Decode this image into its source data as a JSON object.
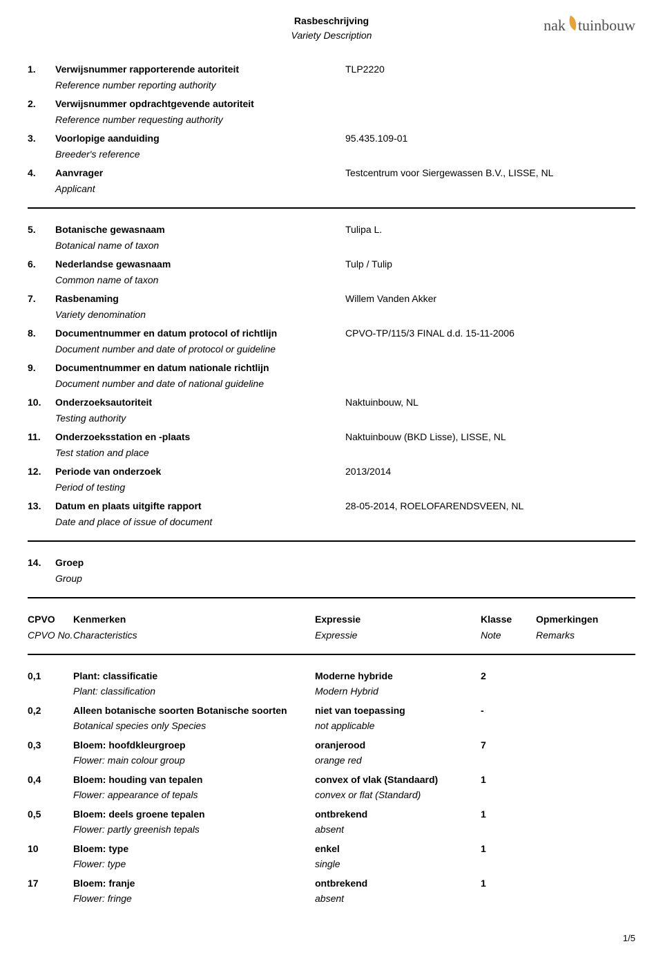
{
  "header": {
    "title_nl": "Rasbeschrijving",
    "title_en": "Variety Description",
    "logo_left": "nak",
    "logo_right": "tuinbouw"
  },
  "items": [
    {
      "num": "1.",
      "label_nl": "Verwijsnummer rapporterende autoriteit",
      "label_en": "Reference number reporting authority",
      "value": "TLP2220"
    },
    {
      "num": "2.",
      "label_nl": "Verwijsnummer opdrachtgevende autoriteit",
      "label_en": "Reference number requesting authority",
      "value": ""
    },
    {
      "num": "3.",
      "label_nl": "Voorlopige aanduiding",
      "label_en": "Breeder's reference",
      "value": "95.435.109-01"
    },
    {
      "num": "4.",
      "label_nl": "Aanvrager",
      "label_en": "Applicant",
      "value": "Testcentrum voor Siergewassen B.V., LISSE, NL"
    }
  ],
  "items2": [
    {
      "num": "5.",
      "label_nl": "Botanische gewasnaam",
      "label_en": "Botanical name of taxon",
      "value": "Tulipa L."
    },
    {
      "num": "6.",
      "label_nl": "Nederlandse gewasnaam",
      "label_en": "Common name of taxon",
      "value": "Tulp / Tulip"
    },
    {
      "num": "7.",
      "label_nl": "Rasbenaming",
      "label_en": "Variety denomination",
      "value": "Willem Vanden Akker"
    },
    {
      "num": "8.",
      "label_nl": "Documentnummer en datum protocol of richtlijn",
      "label_en": "Document number and date of protocol or guideline",
      "value": "CPVO-TP/115/3 FINAL d.d. 15-11-2006"
    },
    {
      "num": "9.",
      "label_nl": "Documentnummer en datum nationale richtlijn",
      "label_en": "Document number and date of national guideline",
      "value": ""
    },
    {
      "num": "10.",
      "label_nl": "Onderzoeksautoriteit",
      "label_en": "Testing authority",
      "value": "Naktuinbouw, NL"
    },
    {
      "num": "11.",
      "label_nl": "Onderzoeksstation en -plaats",
      "label_en": "Test station and place",
      "value": "Naktuinbouw (BKD Lisse), LISSE, NL"
    },
    {
      "num": "12.",
      "label_nl": "Periode van onderzoek",
      "label_en": "Period of testing",
      "value": "2013/2014"
    },
    {
      "num": "13.",
      "label_nl": "Datum en plaats uitgifte rapport",
      "label_en": "Date and place of issue of document",
      "value": "28-05-2014, ROELOFARENDSVEEN, NL"
    }
  ],
  "group": {
    "num": "14.",
    "label_nl": "Groep",
    "label_en": "Group"
  },
  "table_header": {
    "cpvo_nl": "CPVO",
    "cpvo_en": "CPVO No.",
    "kenm_nl": "Kenmerken",
    "kenm_en": "Characteristics",
    "expr_nl": "Expressie",
    "expr_en": "Expressie",
    "klas_nl": "Klasse",
    "klas_en": "Note",
    "opm_nl": "Opmerkingen",
    "opm_en": "Remarks"
  },
  "table_rows": [
    {
      "cpvo": "0,1",
      "kenm_nl": "Plant: classificatie",
      "kenm_en": "Plant: classification",
      "expr_nl": "Moderne hybride",
      "expr_en": "Modern Hybrid",
      "klasse": "2",
      "opm": ""
    },
    {
      "cpvo": "0,2",
      "kenm_nl": "Alleen botanische soorten Botanische soorten",
      "kenm_en": "Botanical species only Species",
      "expr_nl": "niet van toepassing",
      "expr_en": "not applicable",
      "klasse": "-",
      "opm": ""
    },
    {
      "cpvo": "0,3",
      "kenm_nl": "Bloem: hoofdkleurgroep",
      "kenm_en": "Flower: main colour group",
      "expr_nl": "oranjerood",
      "expr_en": "orange red",
      "klasse": "7",
      "opm": ""
    },
    {
      "cpvo": "0,4",
      "kenm_nl": "Bloem: houding van tepalen",
      "kenm_en": "Flower: appearance of tepals",
      "expr_nl": "convex of vlak (Standaard)",
      "expr_en": "convex or flat (Standard)",
      "klasse": "1",
      "opm": ""
    },
    {
      "cpvo": "0,5",
      "kenm_nl": "Bloem: deels groene tepalen",
      "kenm_en": "Flower: partly greenish tepals",
      "expr_nl": "ontbrekend",
      "expr_en": "absent",
      "klasse": "1",
      "opm": ""
    },
    {
      "cpvo": "10",
      "kenm_nl": "Bloem: type",
      "kenm_en": "Flower: type",
      "expr_nl": "enkel",
      "expr_en": "single",
      "klasse": "1",
      "opm": ""
    },
    {
      "cpvo": "17",
      "kenm_nl": "Bloem: franje",
      "kenm_en": "Flower: fringe",
      "expr_nl": "ontbrekend",
      "expr_en": "absent",
      "klasse": "1",
      "opm": ""
    }
  ],
  "footer": {
    "page": "1/5"
  }
}
